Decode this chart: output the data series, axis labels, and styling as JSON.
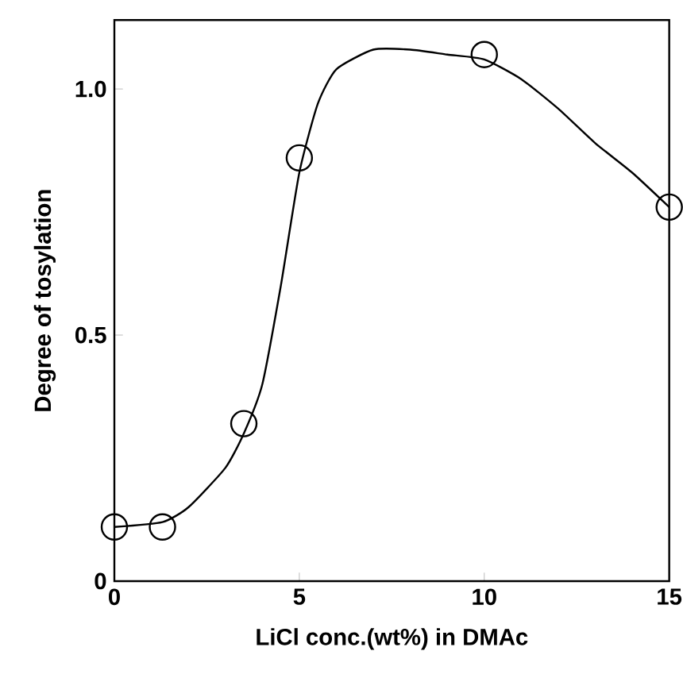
{
  "chart_data": {
    "type": "scatter",
    "xlabel": "LiCl conc.(wt%) in DMAc",
    "ylabel": "Degree of tosylation",
    "xlim": [
      0,
      15
    ],
    "ylim": [
      0,
      1.14
    ],
    "xticks": [
      0,
      5,
      10,
      15
    ],
    "yticks": [
      0,
      0.5,
      {
        "value": 1,
        "label": "1.0"
      }
    ],
    "grid": false,
    "series": [
      {
        "color": "#000000",
        "marker": "circle",
        "x": [
          0,
          1.3,
          3.5,
          5,
          10,
          15
        ],
        "values": [
          0.11,
          0.11,
          0.32,
          0.86,
          1.07,
          0.76
        ]
      },
      {
        "type": "line",
        "color": "#000000",
        "marker": "none",
        "line_style": "solid",
        "x": [
          0,
          1.3,
          2,
          3,
          3.5,
          4,
          4.5,
          5,
          5.5,
          6,
          7,
          8,
          9,
          10,
          11,
          12,
          13,
          14,
          15
        ],
        "values": [
          0.11,
          0.12,
          0.15,
          0.23,
          0.3,
          0.4,
          0.6,
          0.83,
          0.97,
          1.04,
          1.08,
          1.08,
          1.07,
          1.06,
          1.02,
          0.96,
          0.89,
          0.83,
          0.76
        ]
      }
    ]
  }
}
